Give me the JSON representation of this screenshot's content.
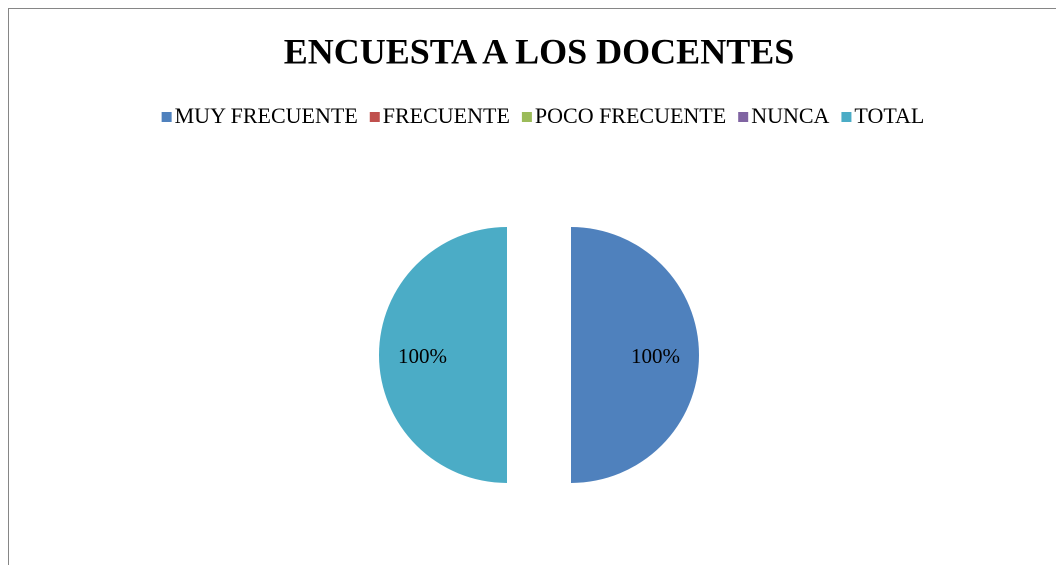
{
  "chart_data": {
    "type": "pie",
    "title": "ENCUESTA  A LOS DOCENTES",
    "categories": [
      "MUY FRECUENTE",
      "FRECUENTE",
      "POCO FRECUENTE",
      "NUNCA",
      "TOTAL"
    ],
    "values": [
      100,
      0,
      0,
      0,
      100
    ],
    "value_labels": [
      "100%",
      null,
      null,
      null,
      "100%"
    ],
    "colors": [
      "#4f81bd",
      "#c0504d",
      "#9bbb59",
      "#8064a2",
      "#4bacc6"
    ],
    "legend": "top",
    "exploded": true
  }
}
